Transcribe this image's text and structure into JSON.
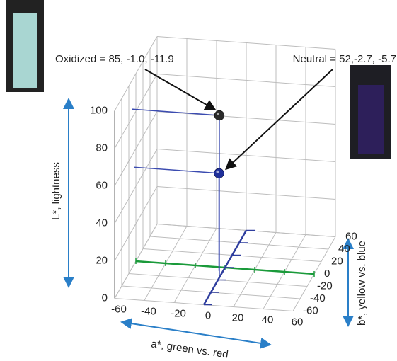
{
  "chart_data": {
    "type": "scatter3d",
    "points": [
      {
        "a": -1.0,
        "b": -11.9,
        "L": 85,
        "color": "#2b2b2b",
        "label": "Oxidized = 85, -1.0, -11.9"
      },
      {
        "a": -2.7,
        "b": -5.7,
        "L": 52,
        "color": "#1f2f9a",
        "label": "Neutral = 52,-2.7, -5.7"
      }
    ],
    "L_label": "L*, lightness",
    "a_label": "a*, green vs. red",
    "b_label": "b*, yellow vs. blue",
    "Llim": [
      0,
      100
    ],
    "Lticks": [
      0,
      20,
      40,
      60,
      80,
      100
    ],
    "alim": [
      -60,
      60
    ],
    "aticks": [
      -60,
      -40,
      -20,
      0,
      20,
      40,
      60
    ],
    "a_color": "#1a9a3a",
    "blim": [
      -60,
      60
    ],
    "bticks": [
      -60,
      -40,
      -20,
      0,
      20,
      40,
      60
    ],
    "b_color": "#2e3d9e",
    "guide_color": "#3b4bb0",
    "grid": true
  }
}
